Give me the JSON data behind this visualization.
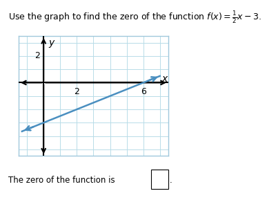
{
  "title_plain": "Use the graph to find the zero of the function ",
  "title_math": "$f(x) = \\frac{1}{2}x - 3$.",
  "footer": "The zero of the function is",
  "xlim": [
    -1.5,
    7.5
  ],
  "ylim": [
    -5.5,
    3.5
  ],
  "xtick_vals": [
    2,
    6
  ],
  "xtick_labels": [
    "2",
    "6"
  ],
  "ytick_vals": [
    2
  ],
  "ytick_labels": [
    "2"
  ],
  "xlabel": "x",
  "ylabel": "y",
  "slope": 0.5,
  "intercept": -3,
  "line_x_start": -1.3,
  "line_x_end": 7.0,
  "line_color": "#4a8fc0",
  "axis_color": "#000000",
  "grid_color": "#b8dce8",
  "background_color": "#ffffff",
  "grid_border_color": "#a0c8dc",
  "title_fontsize": 9.0,
  "tick_fontsize": 9,
  "axis_label_fontsize": 10
}
